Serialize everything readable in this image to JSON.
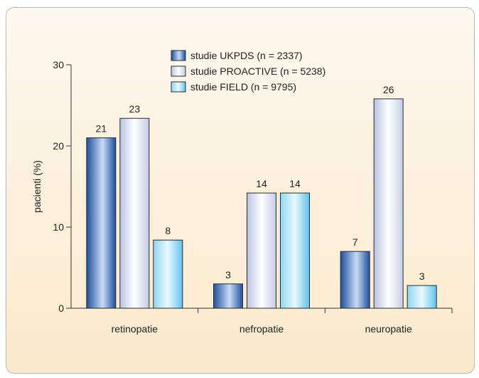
{
  "chart_data": {
    "type": "bar",
    "categories": [
      "retinopatie",
      "nefropatie",
      "neuropatie"
    ],
    "series": [
      {
        "name": "studie UKPDS (n = 2337)",
        "values": [
          21,
          3,
          7
        ],
        "labels": [
          "21",
          "3",
          "7"
        ],
        "style": "dark"
      },
      {
        "name": "studie PROACTIVE (n = 5238)",
        "values": [
          23.4,
          14.2,
          25.8
        ],
        "labels": [
          "23",
          "14",
          "26"
        ],
        "style": "pale"
      },
      {
        "name": "studie FIELD (n = 9795)",
        "values": [
          8.4,
          14.2,
          2.8
        ],
        "labels": [
          "8",
          "14",
          "3"
        ],
        "style": "light"
      }
    ],
    "ylabel": "pacienti (%)",
    "ylim": [
      0,
      30
    ],
    "yticks": [
      0,
      10,
      20,
      30
    ],
    "legend_position": "top-center",
    "grid": false
  },
  "colors": {
    "background_top": "#fdf8ee",
    "background_bottom": "#fbe9cc",
    "ukpds_dark": "#1f4f9e",
    "ukpds_light": "#c8dcf3",
    "proactive_light": "#ffffff",
    "proactive_dark": "#c3cde6",
    "field_light": "#eaf8ff",
    "field_dark": "#5fc3ec"
  }
}
